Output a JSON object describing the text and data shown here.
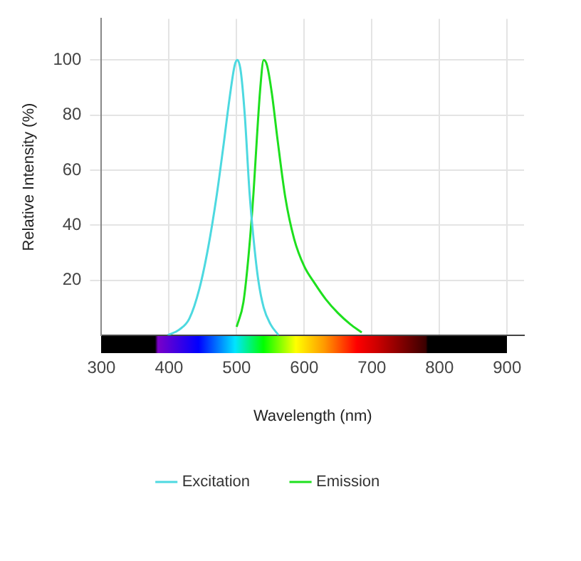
{
  "chart_data": {
    "type": "line",
    "xlabel": "Wavelength (nm)",
    "ylabel": "Relative Intensity (%)",
    "xlim": [
      300,
      925
    ],
    "xticks": [
      300,
      400,
      500,
      600,
      700,
      800,
      900
    ],
    "ylim": [
      0,
      115
    ],
    "yticks": [
      20,
      40,
      60,
      80,
      100
    ],
    "grid": true,
    "legend": "bottom",
    "marker": "none",
    "line_style": "solid",
    "series": [
      {
        "name": "Excitation",
        "color": "#4dd9e0",
        "x": [
          398,
          415,
          430,
          445,
          458,
          470,
          480,
          490,
          497,
          501,
          506,
          512,
          519,
          525,
          532,
          540,
          550,
          562
        ],
        "values": [
          0,
          2,
          6,
          17,
          32,
          50,
          68,
          87,
          98,
          100,
          96,
          80,
          52,
          35,
          20,
          10,
          4,
          0
        ]
      },
      {
        "name": "Emission",
        "color": "#1ee01e",
        "x": [
          500,
          510,
          518,
          525,
          530,
          535,
          540,
          545,
          552,
          560,
          572,
          585,
          600,
          615,
          632,
          650,
          668,
          685
        ],
        "values": [
          3,
          12,
          30,
          52,
          72,
          90,
          100,
          98,
          88,
          72,
          50,
          35,
          25,
          19,
          13,
          8,
          4,
          1
        ]
      }
    ]
  }
}
